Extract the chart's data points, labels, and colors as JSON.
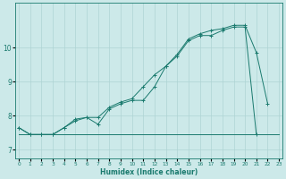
{
  "xlabel": "Humidex (Indice chaleur)",
  "ylabel": "",
  "background_color": "#cce9e9",
  "grid_color": "#aed4d4",
  "line_color": "#1a7a6e",
  "x_ticks": [
    0,
    1,
    2,
    3,
    4,
    5,
    6,
    7,
    8,
    9,
    10,
    11,
    12,
    13,
    14,
    15,
    16,
    17,
    18,
    19,
    20,
    21,
    22,
    23
  ],
  "y_ticks": [
    7,
    8,
    9,
    10
  ],
  "ylim": [
    6.75,
    11.3
  ],
  "xlim": [
    -0.3,
    23.3
  ],
  "line1_x": [
    0,
    1,
    2,
    3,
    4,
    5,
    6,
    7,
    8,
    9,
    10,
    11,
    12,
    13,
    14,
    15,
    16,
    17,
    18,
    19,
    20,
    21
  ],
  "line1_y": [
    7.65,
    7.45,
    7.45,
    7.45,
    7.65,
    7.85,
    7.95,
    7.75,
    8.2,
    8.35,
    8.45,
    8.45,
    8.85,
    9.45,
    9.75,
    10.2,
    10.35,
    10.35,
    10.5,
    10.6,
    10.6,
    7.45
  ],
  "line2_x": [
    0,
    1,
    2,
    3,
    4,
    5,
    6,
    7,
    8,
    9,
    10,
    11,
    12,
    13,
    14,
    15,
    16,
    17,
    18,
    19,
    20,
    21,
    22
  ],
  "line2_y": [
    7.65,
    7.45,
    7.45,
    7.45,
    7.65,
    7.9,
    7.95,
    7.95,
    8.25,
    8.4,
    8.5,
    8.85,
    9.2,
    9.45,
    9.8,
    10.25,
    10.4,
    10.5,
    10.55,
    10.65,
    10.65,
    9.85,
    8.35
  ],
  "line3_x": [
    0,
    1,
    2,
    3,
    4,
    5,
    6,
    7,
    8,
    9,
    10,
    11,
    12,
    13,
    14,
    15,
    16,
    17,
    18,
    19,
    20,
    21,
    22,
    23
  ],
  "line3_y": [
    7.45,
    7.45,
    7.45,
    7.45,
    7.45,
    7.45,
    7.45,
    7.45,
    7.45,
    7.45,
    7.45,
    7.45,
    7.45,
    7.45,
    7.45,
    7.45,
    7.45,
    7.45,
    7.45,
    7.45,
    7.45,
    7.45,
    7.45,
    7.45
  ]
}
